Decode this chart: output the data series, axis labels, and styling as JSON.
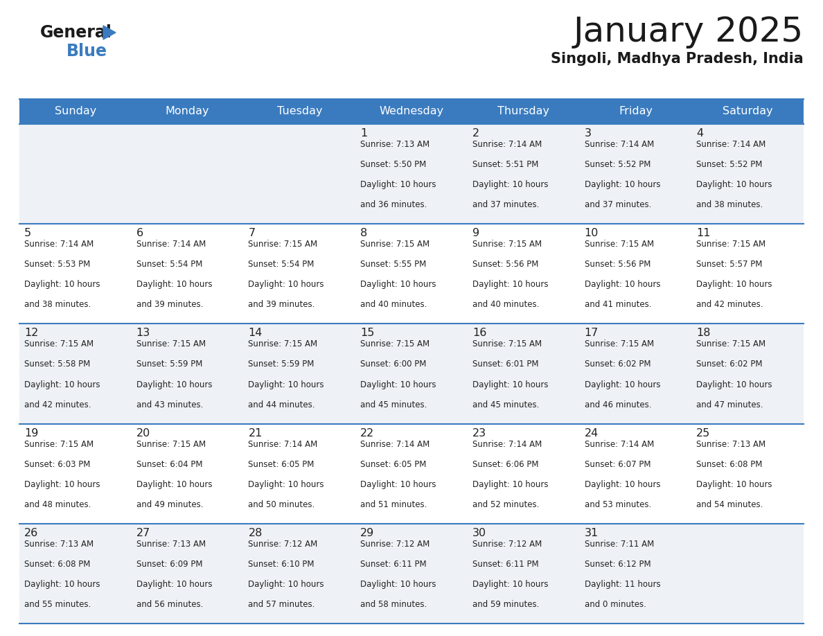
{
  "title": "January 2025",
  "subtitle": "Singoli, Madhya Pradesh, India",
  "days_of_week": [
    "Sunday",
    "Monday",
    "Tuesday",
    "Wednesday",
    "Thursday",
    "Friday",
    "Saturday"
  ],
  "header_bg": "#3a7bbf",
  "header_text": "#ffffff",
  "cell_bg_odd": "#eef1f5",
  "cell_bg_even": "#ffffff",
  "border_color": "#3a7bbf",
  "text_color": "#222222",
  "calendar_data": [
    [
      {
        "day": "",
        "sunrise": "",
        "sunset": "",
        "daylight_h": "",
        "daylight_m": ""
      },
      {
        "day": "",
        "sunrise": "",
        "sunset": "",
        "daylight_h": "",
        "daylight_m": ""
      },
      {
        "day": "",
        "sunrise": "",
        "sunset": "",
        "daylight_h": "",
        "daylight_m": ""
      },
      {
        "day": "1",
        "sunrise": "7:13 AM",
        "sunset": "5:50 PM",
        "daylight_h": "10 hours",
        "daylight_m": "and 36 minutes."
      },
      {
        "day": "2",
        "sunrise": "7:14 AM",
        "sunset": "5:51 PM",
        "daylight_h": "10 hours",
        "daylight_m": "and 37 minutes."
      },
      {
        "day": "3",
        "sunrise": "7:14 AM",
        "sunset": "5:52 PM",
        "daylight_h": "10 hours",
        "daylight_m": "and 37 minutes."
      },
      {
        "day": "4",
        "sunrise": "7:14 AM",
        "sunset": "5:52 PM",
        "daylight_h": "10 hours",
        "daylight_m": "and 38 minutes."
      }
    ],
    [
      {
        "day": "5",
        "sunrise": "7:14 AM",
        "sunset": "5:53 PM",
        "daylight_h": "10 hours",
        "daylight_m": "and 38 minutes."
      },
      {
        "day": "6",
        "sunrise": "7:14 AM",
        "sunset": "5:54 PM",
        "daylight_h": "10 hours",
        "daylight_m": "and 39 minutes."
      },
      {
        "day": "7",
        "sunrise": "7:15 AM",
        "sunset": "5:54 PM",
        "daylight_h": "10 hours",
        "daylight_m": "and 39 minutes."
      },
      {
        "day": "8",
        "sunrise": "7:15 AM",
        "sunset": "5:55 PM",
        "daylight_h": "10 hours",
        "daylight_m": "and 40 minutes."
      },
      {
        "day": "9",
        "sunrise": "7:15 AM",
        "sunset": "5:56 PM",
        "daylight_h": "10 hours",
        "daylight_m": "and 40 minutes."
      },
      {
        "day": "10",
        "sunrise": "7:15 AM",
        "sunset": "5:56 PM",
        "daylight_h": "10 hours",
        "daylight_m": "and 41 minutes."
      },
      {
        "day": "11",
        "sunrise": "7:15 AM",
        "sunset": "5:57 PM",
        "daylight_h": "10 hours",
        "daylight_m": "and 42 minutes."
      }
    ],
    [
      {
        "day": "12",
        "sunrise": "7:15 AM",
        "sunset": "5:58 PM",
        "daylight_h": "10 hours",
        "daylight_m": "and 42 minutes."
      },
      {
        "day": "13",
        "sunrise": "7:15 AM",
        "sunset": "5:59 PM",
        "daylight_h": "10 hours",
        "daylight_m": "and 43 minutes."
      },
      {
        "day": "14",
        "sunrise": "7:15 AM",
        "sunset": "5:59 PM",
        "daylight_h": "10 hours",
        "daylight_m": "and 44 minutes."
      },
      {
        "day": "15",
        "sunrise": "7:15 AM",
        "sunset": "6:00 PM",
        "daylight_h": "10 hours",
        "daylight_m": "and 45 minutes."
      },
      {
        "day": "16",
        "sunrise": "7:15 AM",
        "sunset": "6:01 PM",
        "daylight_h": "10 hours",
        "daylight_m": "and 45 minutes."
      },
      {
        "day": "17",
        "sunrise": "7:15 AM",
        "sunset": "6:02 PM",
        "daylight_h": "10 hours",
        "daylight_m": "and 46 minutes."
      },
      {
        "day": "18",
        "sunrise": "7:15 AM",
        "sunset": "6:02 PM",
        "daylight_h": "10 hours",
        "daylight_m": "and 47 minutes."
      }
    ],
    [
      {
        "day": "19",
        "sunrise": "7:15 AM",
        "sunset": "6:03 PM",
        "daylight_h": "10 hours",
        "daylight_m": "and 48 minutes."
      },
      {
        "day": "20",
        "sunrise": "7:15 AM",
        "sunset": "6:04 PM",
        "daylight_h": "10 hours",
        "daylight_m": "and 49 minutes."
      },
      {
        "day": "21",
        "sunrise": "7:14 AM",
        "sunset": "6:05 PM",
        "daylight_h": "10 hours",
        "daylight_m": "and 50 minutes."
      },
      {
        "day": "22",
        "sunrise": "7:14 AM",
        "sunset": "6:05 PM",
        "daylight_h": "10 hours",
        "daylight_m": "and 51 minutes."
      },
      {
        "day": "23",
        "sunrise": "7:14 AM",
        "sunset": "6:06 PM",
        "daylight_h": "10 hours",
        "daylight_m": "and 52 minutes."
      },
      {
        "day": "24",
        "sunrise": "7:14 AM",
        "sunset": "6:07 PM",
        "daylight_h": "10 hours",
        "daylight_m": "and 53 minutes."
      },
      {
        "day": "25",
        "sunrise": "7:13 AM",
        "sunset": "6:08 PM",
        "daylight_h": "10 hours",
        "daylight_m": "and 54 minutes."
      }
    ],
    [
      {
        "day": "26",
        "sunrise": "7:13 AM",
        "sunset": "6:08 PM",
        "daylight_h": "10 hours",
        "daylight_m": "and 55 minutes."
      },
      {
        "day": "27",
        "sunrise": "7:13 AM",
        "sunset": "6:09 PM",
        "daylight_h": "10 hours",
        "daylight_m": "and 56 minutes."
      },
      {
        "day": "28",
        "sunrise": "7:12 AM",
        "sunset": "6:10 PM",
        "daylight_h": "10 hours",
        "daylight_m": "and 57 minutes."
      },
      {
        "day": "29",
        "sunrise": "7:12 AM",
        "sunset": "6:11 PM",
        "daylight_h": "10 hours",
        "daylight_m": "and 58 minutes."
      },
      {
        "day": "30",
        "sunrise": "7:12 AM",
        "sunset": "6:11 PM",
        "daylight_h": "10 hours",
        "daylight_m": "and 59 minutes."
      },
      {
        "day": "31",
        "sunrise": "7:11 AM",
        "sunset": "6:12 PM",
        "daylight_h": "11 hours",
        "daylight_m": "and 0 minutes."
      },
      {
        "day": "",
        "sunrise": "",
        "sunset": "",
        "daylight_h": "",
        "daylight_m": ""
      }
    ]
  ]
}
